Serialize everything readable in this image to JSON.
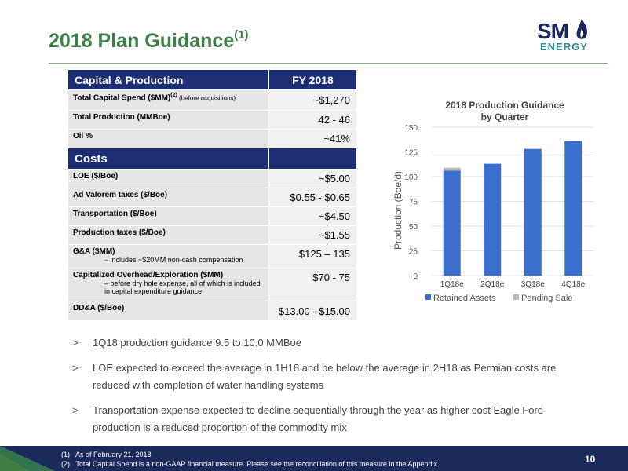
{
  "page": {
    "title": "2018 Plan Guidance",
    "title_sup": "(1)",
    "page_number": "10"
  },
  "logo": {
    "top": "SM",
    "bottom": "ENERGY"
  },
  "table": {
    "section1": {
      "label": "Capital & Production",
      "col": "FY 2018"
    },
    "rows1": [
      {
        "label": "Total Capital Spend ($MM)",
        "sup": "(2)",
        "note": " (before acquisitions)",
        "value": "~$1,270"
      },
      {
        "label": "Total Production (MMBoe)",
        "value": "42 - 46"
      },
      {
        "label": "Oil %",
        "value": "~41%"
      }
    ],
    "section2": {
      "label": "Costs"
    },
    "rows2": [
      {
        "label": "LOE ($/Boe)",
        "value": "~$5.00"
      },
      {
        "label": "Ad Valorem taxes ($/Boe)",
        "value": "$0.55 - $0.65"
      },
      {
        "label": "Transportation ($/Boe)",
        "value": "~$4.50"
      },
      {
        "label": "Production taxes ($/Boe)",
        "value": "~$1.55"
      },
      {
        "label": "G&A ($MM)",
        "sub": "– includes ~$20MM non-cash compensation",
        "value": "$125 – 135"
      },
      {
        "label": "Capitalized Overhead/Exploration ($MM)",
        "sub": "– before dry hole expense, all of which is included in capital expenditure guidance",
        "value": "$70 - 75"
      },
      {
        "label": "DD&A ($/Boe)",
        "value": "$13.00 - $15.00"
      }
    ]
  },
  "chart_data": {
    "type": "bar",
    "title": "2018 Production Guidance by Quarter",
    "title_line1": "2018 Production Guidance",
    "title_line2": "by Quarter",
    "ylabel": "Production (Boe/d)",
    "xlabel": "",
    "ylim": [
      0,
      150
    ],
    "yticks": [
      "0",
      "25",
      "50",
      "75",
      "100",
      "125",
      "150"
    ],
    "categories": [
      "1Q18e",
      "2Q18e",
      "3Q18e",
      "4Q18e"
    ],
    "stacked": true,
    "series": [
      {
        "name": "Retained Assets",
        "color": "#3a6fd0",
        "values": [
          106,
          113,
          128,
          136
        ]
      },
      {
        "name": "Pending Sale",
        "color": "#b8b8b8",
        "values": [
          3,
          0,
          0,
          0
        ]
      }
    ],
    "legend": "bottom",
    "grid": true
  },
  "bullets": [
    {
      "marker": ">",
      "text": "1Q18 production guidance 9.5 to 10.0 MMBoe"
    },
    {
      "marker": ">",
      "text": "LOE expected to exceed the average in 1H18 and be below the average in 2H18 as Permian costs are reduced with completion of water handling systems"
    },
    {
      "marker": ">",
      "text": "Transportation expense expected to decline sequentially through the year as higher cost Eagle Ford production is a reduced proportion of the commodity mix"
    }
  ],
  "footnotes": [
    "(1)   As of February 21, 2018",
    "(2)   Total Capital Spend is a non-GAAP financial measure. Please see the reconciliation of this measure in the Appendix."
  ]
}
